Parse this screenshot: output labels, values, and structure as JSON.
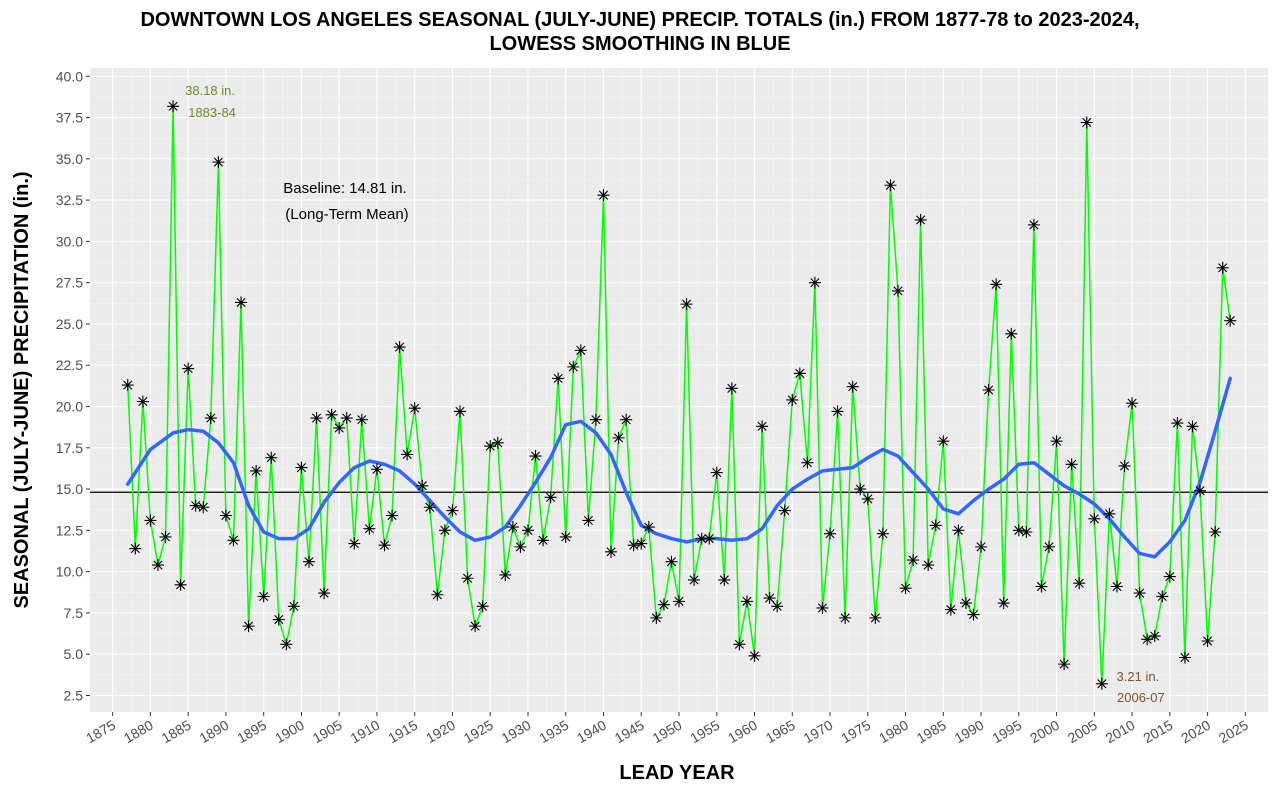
{
  "chart_data": {
    "type": "line",
    "title_line1": "DOWNTOWN LOS ANGELES SEASONAL (JULY-JUNE) PRECIP. TOTALS (in.) FROM 1877-78 to 2023-2024,",
    "title_line2": "LOWESS SMOOTHING IN BLUE",
    "xlabel": "LEAD YEAR",
    "ylabel": "SEASONAL (JULY-JUNE) PRECIPITATION (in.)",
    "xlim": [
      1872,
      2028
    ],
    "ylim": [
      1.5,
      40.5
    ],
    "x_ticks": [
      1875,
      1880,
      1885,
      1890,
      1895,
      1900,
      1905,
      1910,
      1915,
      1920,
      1925,
      1930,
      1935,
      1940,
      1945,
      1950,
      1955,
      1960,
      1965,
      1970,
      1975,
      1980,
      1985,
      1990,
      1995,
      2000,
      2005,
      2010,
      2015,
      2020,
      2025
    ],
    "y_ticks": [
      "2.5",
      "5.0",
      "7.5",
      "10.0",
      "12.5",
      "15.0",
      "17.5",
      "20.0",
      "22.5",
      "25.0",
      "27.5",
      "30.0",
      "32.5",
      "35.0",
      "37.5",
      "40.0"
    ],
    "grid": true,
    "colors": {
      "panel": "#ebebeb",
      "grid_major": "#ffffff",
      "grid_minor": "#f5f5f5",
      "series_line": "#00ff00",
      "points": "#000000",
      "smooth": "#3366ff",
      "baseline": "#000000",
      "max_annotation": "#6b8e23",
      "min_annotation": "#7a5230"
    },
    "series": [
      {
        "name": "Seasonal precipitation",
        "x": [
          1877,
          1878,
          1879,
          1880,
          1881,
          1882,
          1883,
          1884,
          1885,
          1886,
          1887,
          1888,
          1889,
          1890,
          1891,
          1892,
          1893,
          1894,
          1895,
          1896,
          1897,
          1898,
          1899,
          1900,
          1901,
          1902,
          1903,
          1904,
          1905,
          1906,
          1907,
          1908,
          1909,
          1910,
          1911,
          1912,
          1913,
          1914,
          1915,
          1916,
          1917,
          1918,
          1919,
          1920,
          1921,
          1922,
          1923,
          1924,
          1925,
          1926,
          1927,
          1928,
          1929,
          1930,
          1931,
          1932,
          1933,
          1934,
          1935,
          1936,
          1937,
          1938,
          1939,
          1940,
          1941,
          1942,
          1943,
          1944,
          1945,
          1946,
          1947,
          1948,
          1949,
          1950,
          1951,
          1952,
          1953,
          1954,
          1955,
          1956,
          1957,
          1958,
          1959,
          1960,
          1961,
          1962,
          1963,
          1964,
          1965,
          1966,
          1967,
          1968,
          1969,
          1970,
          1971,
          1972,
          1973,
          1974,
          1975,
          1976,
          1977,
          1978,
          1979,
          1980,
          1981,
          1982,
          1983,
          1984,
          1985,
          1986,
          1987,
          1988,
          1989,
          1990,
          1991,
          1992,
          1993,
          1994,
          1995,
          1996,
          1997,
          1998,
          1999,
          2000,
          2001,
          2002,
          2003,
          2004,
          2005,
          2006,
          2007,
          2008,
          2009,
          2010,
          2011,
          2012,
          2013,
          2014,
          2015,
          2016,
          2017,
          2018,
          2019,
          2020,
          2021,
          2022,
          2023
        ],
        "y": [
          21.3,
          11.4,
          20.3,
          13.1,
          10.4,
          12.1,
          38.18,
          9.2,
          22.3,
          14.0,
          13.9,
          19.3,
          34.8,
          13.4,
          11.9,
          26.3,
          6.7,
          16.1,
          8.5,
          16.9,
          7.1,
          5.6,
          7.9,
          16.3,
          10.6,
          19.3,
          8.7,
          19.5,
          18.7,
          19.3,
          11.7,
          19.2,
          12.6,
          16.2,
          11.6,
          13.4,
          23.6,
          17.1,
          19.9,
          15.2,
          13.9,
          8.6,
          12.5,
          13.7,
          19.7,
          9.6,
          6.7,
          7.9,
          17.6,
          17.8,
          9.8,
          12.7,
          11.5,
          12.5,
          17.0,
          11.9,
          14.5,
          21.7,
          12.1,
          22.4,
          23.4,
          13.1,
          19.2,
          32.8,
          11.2,
          18.1,
          19.2,
          11.6,
          11.7,
          12.7,
          7.2,
          8.0,
          10.6,
          8.2,
          26.2,
          9.5,
          12.0,
          12.0,
          16.0,
          9.5,
          21.1,
          5.6,
          8.2,
          4.9,
          18.8,
          8.4,
          7.9,
          13.7,
          20.4,
          22.0,
          16.6,
          27.5,
          7.8,
          12.3,
          19.7,
          7.2,
          21.2,
          15.0,
          14.4,
          7.2,
          12.3,
          33.4,
          27.0,
          9.0,
          10.7,
          31.3,
          10.4,
          12.8,
          17.9,
          7.7,
          12.5,
          8.1,
          7.4,
          11.5,
          21.0,
          27.4,
          8.1,
          24.4,
          12.5,
          12.4,
          31.0,
          9.1,
          11.5,
          17.9,
          4.4,
          16.5,
          9.3,
          37.2,
          13.2,
          3.21,
          13.5,
          9.1,
          16.4,
          20.2,
          8.7,
          5.9,
          6.1,
          8.5,
          9.7,
          19.0,
          4.8,
          18.8,
          14.9,
          5.8,
          12.4,
          28.4,
          25.2
        ]
      },
      {
        "name": "LOWESS smoothing",
        "x": [
          1877,
          1880,
          1883,
          1885,
          1887,
          1889,
          1891,
          1893,
          1895,
          1897,
          1899,
          1901,
          1903,
          1905,
          1907,
          1909,
          1911,
          1913,
          1915,
          1917,
          1919,
          1921,
          1923,
          1925,
          1927,
          1929,
          1931,
          1933,
          1935,
          1937,
          1939,
          1941,
          1943,
          1945,
          1947,
          1949,
          1951,
          1953,
          1955,
          1957,
          1959,
          1961,
          1963,
          1965,
          1967,
          1969,
          1971,
          1973,
          1975,
          1977,
          1979,
          1981,
          1983,
          1985,
          1987,
          1989,
          1991,
          1993,
          1995,
          1997,
          1999,
          2001,
          2003,
          2005,
          2007,
          2009,
          2011,
          2013,
          2015,
          2017,
          2019,
          2021,
          2023
        ],
        "y": [
          15.3,
          17.4,
          18.4,
          18.6,
          18.5,
          17.8,
          16.6,
          14.0,
          12.4,
          12.0,
          12.0,
          12.6,
          14.2,
          15.4,
          16.3,
          16.7,
          16.5,
          16.1,
          15.3,
          14.3,
          13.3,
          12.4,
          11.9,
          12.1,
          12.7,
          14.0,
          15.4,
          16.9,
          18.9,
          19.1,
          18.4,
          17.1,
          14.8,
          12.8,
          12.3,
          12.0,
          11.8,
          12.0,
          12.0,
          11.9,
          12.0,
          12.6,
          14.0,
          15.0,
          15.6,
          16.1,
          16.2,
          16.3,
          16.9,
          17.4,
          17.0,
          16.0,
          15.0,
          13.8,
          13.5,
          14.3,
          15.0,
          15.6,
          16.5,
          16.6,
          15.9,
          15.2,
          14.7,
          14.1,
          13.2,
          12.1,
          11.1,
          10.9,
          11.8,
          13.1,
          15.4,
          18.5,
          21.7
        ]
      }
    ],
    "baseline": {
      "value": 14.81,
      "label_line1": "Baseline: 14.81 in.",
      "label_line2": "(Long-Term Mean)"
    },
    "annotations": {
      "max": {
        "x": 1883,
        "y": 38.18,
        "line1": "38.18 in.",
        "line2": "1883-84"
      },
      "min": {
        "x": 2006,
        "y": 3.21,
        "line1": "3.21 in.",
        "line2": "2006-07"
      }
    }
  }
}
